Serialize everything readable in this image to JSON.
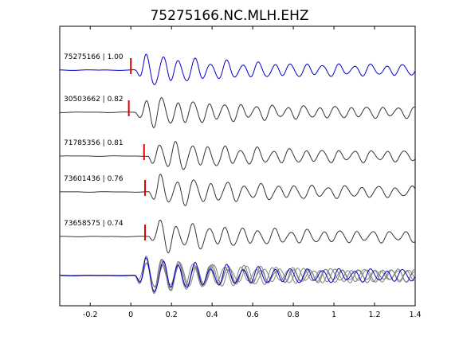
{
  "chart_data": {
    "type": "line",
    "title": "75275166.NC.MLH.EHZ",
    "xlabel": "",
    "ylabel": "",
    "xlim": [
      -0.35,
      1.4
    ],
    "xticks": [
      -0.2,
      0,
      0.2,
      0.4,
      0.6,
      0.8,
      1,
      1.2,
      1.4
    ],
    "xtick_labels": [
      "-0.2",
      "0",
      "0.2",
      "0.4",
      "0.6",
      "0.8",
      "1",
      "1.2",
      "1.4"
    ],
    "grid": false,
    "legend": "none",
    "colors": {
      "reference": "#0000cc",
      "other": "#333333",
      "pick": "#dd0000",
      "stack_other": "#808080"
    },
    "traces": [
      {
        "label": "75275166 | 1.00",
        "event": "75275166",
        "correlation": 1.0,
        "pick_time": 0.0,
        "color": "#0000cc"
      },
      {
        "label": "30503662 | 0.82",
        "event": "30503662",
        "correlation": 0.82,
        "pick_time": -0.01,
        "color": "#333333"
      },
      {
        "label": "71785356 | 0.81",
        "event": "71785356",
        "correlation": 0.81,
        "pick_time": 0.065,
        "color": "#333333"
      },
      {
        "label": "73601436 | 0.76",
        "event": "73601436",
        "correlation": 0.76,
        "pick_time": 0.07,
        "color": "#333333"
      },
      {
        "label": "73658575 | 0.74",
        "event": "73658575",
        "correlation": 0.74,
        "pick_time": 0.07,
        "color": "#333333"
      }
    ]
  }
}
